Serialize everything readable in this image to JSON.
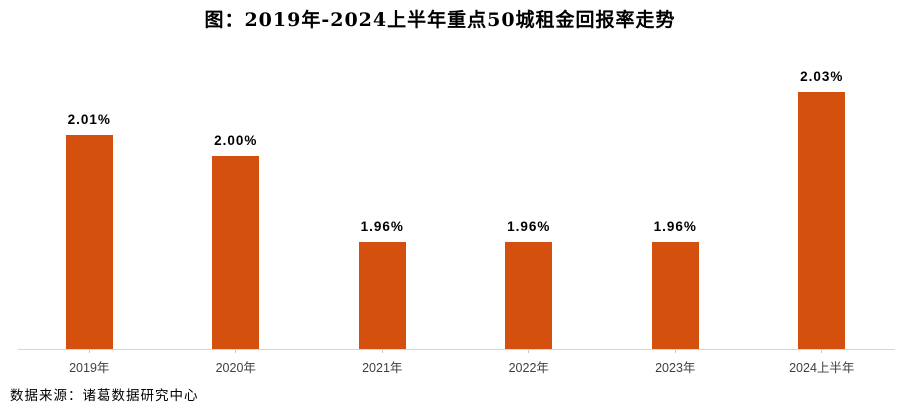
{
  "title": "图：2019年-2024上半年重点50城租金回报率走势",
  "source_note": "数据来源：诸葛数据研究中心",
  "chart_data": {
    "type": "bar",
    "title": "图：2019年-2024上半年重点50城租金回报率走势",
    "categories": [
      "2019年",
      "2020年",
      "2021年",
      "2022年",
      "2023年",
      "2024上半年"
    ],
    "values": [
      2.01,
      2.0,
      1.96,
      1.96,
      1.96,
      2.03
    ],
    "data_labels": [
      "2.01%",
      "2.00%",
      "1.96%",
      "1.96%",
      "1.96%",
      "2.03%"
    ],
    "xlabel": "",
    "ylabel": "",
    "ylim": [
      1.91,
      2.05
    ],
    "grid": false,
    "legend": false,
    "bar_color": "#d3500e",
    "axis_line_color": "#d6d6d6",
    "data_label_color": "#000000",
    "x_label_color": "#404040",
    "source_note": "数据来源：诸葛数据研究中心"
  }
}
